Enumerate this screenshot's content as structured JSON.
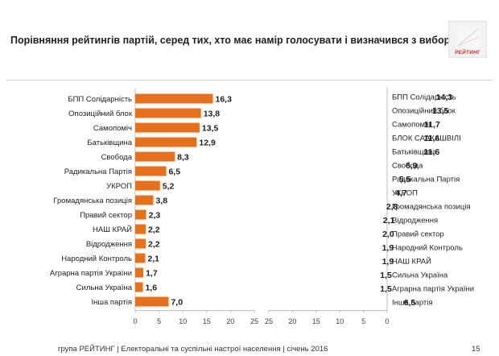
{
  "header": {
    "title": "Порівняння рейтингів партій, серед тих, хто має намір голосувати і визначився з вибором",
    "logo_text": "РЕЙТИНГ"
  },
  "footer": {
    "text": "група РЕЙТИНГ  |  Електоральні та суспільні настрої населення  |  січень 2016",
    "page_number": "15"
  },
  "colors": {
    "bar": "#e5701e",
    "axis": "#bfbfbf",
    "text": "#1f1f1f"
  },
  "chart_data": [
    {
      "type": "bar",
      "orientation": "horizontal",
      "title": "",
      "categories": [
        "БПП Солідарність",
        "Опозиційний блок",
        "Самопоміч",
        "Батьківщина",
        "Свобода",
        "Радикальна Партія",
        "УКРОП",
        "Громадянська позиція",
        "Правий сектор",
        "НАШ КРАЙ",
        "Відродження",
        "Народний Контроль",
        "Аграрна партія України",
        "Сильна Україна",
        "Інша партія"
      ],
      "values": [
        16.3,
        13.8,
        13.5,
        12.9,
        8.3,
        6.5,
        5.2,
        3.8,
        2.3,
        2.2,
        2.2,
        2.1,
        1.7,
        1.6,
        7.0
      ],
      "labels": [
        "16,3",
        "13,8",
        "13,5",
        "12,9",
        "8,3",
        "6,5",
        "5,2",
        "3,8",
        "2,3",
        "2,2",
        "2,2",
        "2,1",
        "1,7",
        "1,6",
        "7,0"
      ],
      "xlim": [
        0,
        25
      ],
      "ticks": [
        "0",
        "5",
        "10",
        "15",
        "20",
        "25"
      ],
      "direction": "left-to-right"
    },
    {
      "type": "bar",
      "orientation": "horizontal",
      "title": "",
      "categories": [
        "БПП Солідарність",
        "Опозиційний блок",
        "Самопоміч",
        "БЛОК СААКАШВІЛІ",
        "Батьківщина",
        "Свобода",
        "Радикальна Партія",
        "УКРОП",
        "Громадянська позиція",
        "Відродження",
        "Правий сектор",
        "Народний Контроль",
        "НАШ КРАЙ",
        "Сильна Україна",
        "Аграрна партія України",
        "Інша партія"
      ],
      "values": [
        14.3,
        13.5,
        11.7,
        11.6,
        11.6,
        6.9,
        5.5,
        4.7,
        2.8,
        2.1,
        2.0,
        1.9,
        1.9,
        1.5,
        1.5,
        6.5
      ],
      "labels": [
        "14,3",
        "13,5",
        "11,7",
        "11,6",
        "11,6",
        "6,9",
        "5,5",
        "4,7",
        "2,8",
        "2,1",
        "2,0",
        "1,9",
        "1,9",
        "1,5",
        "1,5",
        "6,5"
      ],
      "xlim": [
        0,
        25
      ],
      "ticks": [
        "25",
        "20",
        "15",
        "10",
        "5",
        "0"
      ],
      "direction": "right-to-left"
    }
  ]
}
